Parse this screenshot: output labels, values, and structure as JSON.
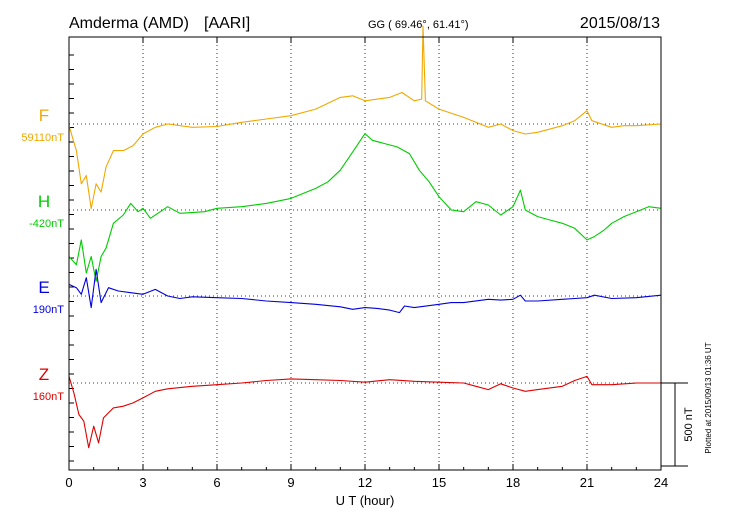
{
  "header": {
    "station": "Amderma (AMD)",
    "institute": "[AARI]",
    "coords": "GG ( 69.46°,  61.41°)",
    "date": "2015/08/13"
  },
  "footer": {
    "plotted": "Plotted at 2015/09/13 01:36 UT"
  },
  "chart_data": {
    "type": "line",
    "xlabel": "U T (hour)",
    "xlim": [
      0,
      24
    ],
    "x_ticks": [
      0,
      3,
      6,
      9,
      12,
      15,
      18,
      21,
      24
    ],
    "x_tick_labels": [
      "0",
      "3",
      "6",
      "9",
      "12",
      "15",
      "18",
      "21",
      "24"
    ],
    "y_unit": "nT",
    "scale_bar": {
      "label": "500 nT",
      "value_nT": 500
    },
    "grid": true,
    "series": [
      {
        "name": "F",
        "baseline_label": "59110nT",
        "baseline_nT": 59110,
        "color": "#f0a800",
        "points": [
          [
            0,
            59100
          ],
          [
            0.3,
            58950
          ],
          [
            0.5,
            58750
          ],
          [
            0.7,
            58800
          ],
          [
            0.9,
            58600
          ],
          [
            1.1,
            58750
          ],
          [
            1.3,
            58700
          ],
          [
            1.5,
            58850
          ],
          [
            1.8,
            58950
          ],
          [
            2.2,
            58950
          ],
          [
            2.6,
            58980
          ],
          [
            3.0,
            59050
          ],
          [
            3.5,
            59090
          ],
          [
            4.0,
            59110
          ],
          [
            5.0,
            59090
          ],
          [
            6.0,
            59095
          ],
          [
            7.0,
            59120
          ],
          [
            8.0,
            59140
          ],
          [
            9.0,
            59160
          ],
          [
            10.0,
            59200
          ],
          [
            11.0,
            59270
          ],
          [
            11.5,
            59280
          ],
          [
            12.0,
            59250
          ],
          [
            13.0,
            59270
          ],
          [
            13.5,
            59300
          ],
          [
            14.0,
            59250
          ],
          [
            14.3,
            59260
          ],
          [
            14.35,
            59700
          ],
          [
            14.45,
            59250
          ],
          [
            15.0,
            59200
          ],
          [
            16.0,
            59150
          ],
          [
            17.0,
            59090
          ],
          [
            17.5,
            59110
          ],
          [
            18.0,
            59070
          ],
          [
            18.5,
            59050
          ],
          [
            19.0,
            59060
          ],
          [
            20.0,
            59100
          ],
          [
            20.5,
            59130
          ],
          [
            21.0,
            59190
          ],
          [
            21.2,
            59130
          ],
          [
            22.0,
            59090
          ],
          [
            22.5,
            59100
          ],
          [
            23.0,
            59100
          ],
          [
            24.0,
            59110
          ]
        ]
      },
      {
        "name": "H",
        "baseline_label": "-420nT",
        "baseline_nT": -420,
        "color": "#00cc00",
        "points": [
          [
            0,
            -700
          ],
          [
            0.3,
            -750
          ],
          [
            0.5,
            -600
          ],
          [
            0.7,
            -800
          ],
          [
            0.9,
            -700
          ],
          [
            1.1,
            -850
          ],
          [
            1.3,
            -700
          ],
          [
            1.5,
            -650
          ],
          [
            1.8,
            -500
          ],
          [
            2.2,
            -450
          ],
          [
            2.5,
            -380
          ],
          [
            2.8,
            -430
          ],
          [
            3.0,
            -410
          ],
          [
            3.3,
            -470
          ],
          [
            4.0,
            -400
          ],
          [
            4.5,
            -440
          ],
          [
            5.5,
            -430
          ],
          [
            6.0,
            -410
          ],
          [
            7.0,
            -400
          ],
          [
            8.0,
            -380
          ],
          [
            9.0,
            -350
          ],
          [
            9.5,
            -320
          ],
          [
            10.0,
            -290
          ],
          [
            10.5,
            -250
          ],
          [
            11.0,
            -180
          ],
          [
            11.5,
            -70
          ],
          [
            12.0,
            40
          ],
          [
            12.3,
            0
          ],
          [
            12.8,
            -20
          ],
          [
            13.3,
            -40
          ],
          [
            13.8,
            -80
          ],
          [
            14.2,
            -180
          ],
          [
            14.6,
            -250
          ],
          [
            15.0,
            -340
          ],
          [
            15.5,
            -420
          ],
          [
            16.0,
            -430
          ],
          [
            16.5,
            -370
          ],
          [
            17.0,
            -390
          ],
          [
            17.5,
            -450
          ],
          [
            18.0,
            -400
          ],
          [
            18.3,
            -300
          ],
          [
            18.5,
            -420
          ],
          [
            19.0,
            -460
          ],
          [
            19.5,
            -480
          ],
          [
            20.0,
            -500
          ],
          [
            20.5,
            -530
          ],
          [
            21.0,
            -600
          ],
          [
            21.3,
            -580
          ],
          [
            21.7,
            -540
          ],
          [
            22.0,
            -500
          ],
          [
            22.5,
            -460
          ],
          [
            23.0,
            -430
          ],
          [
            23.5,
            -400
          ],
          [
            24.0,
            -410
          ]
        ]
      },
      {
        "name": "E",
        "baseline_label": "190nT",
        "baseline_nT": 190,
        "color": "#0000dd",
        "points": [
          [
            0,
            260
          ],
          [
            0.3,
            240
          ],
          [
            0.5,
            200
          ],
          [
            0.7,
            300
          ],
          [
            0.9,
            120
          ],
          [
            1.1,
            350
          ],
          [
            1.3,
            150
          ],
          [
            1.6,
            240
          ],
          [
            2.0,
            220
          ],
          [
            2.5,
            210
          ],
          [
            3.0,
            200
          ],
          [
            3.5,
            230
          ],
          [
            4.0,
            190
          ],
          [
            4.5,
            175
          ],
          [
            5.0,
            185
          ],
          [
            6.0,
            180
          ],
          [
            7.0,
            175
          ],
          [
            8.0,
            160
          ],
          [
            9.0,
            150
          ],
          [
            10.0,
            140
          ],
          [
            11.0,
            125
          ],
          [
            11.5,
            110
          ],
          [
            12.0,
            120
          ],
          [
            12.5,
            115
          ],
          [
            13.0,
            105
          ],
          [
            13.4,
            90
          ],
          [
            13.6,
            130
          ],
          [
            14.0,
            120
          ],
          [
            15.0,
            140
          ],
          [
            15.5,
            150
          ],
          [
            16.0,
            150
          ],
          [
            17.0,
            170
          ],
          [
            17.5,
            165
          ],
          [
            18.0,
            170
          ],
          [
            18.3,
            195
          ],
          [
            18.5,
            160
          ],
          [
            19.0,
            160
          ],
          [
            20.0,
            170
          ],
          [
            20.5,
            175
          ],
          [
            21.0,
            180
          ],
          [
            21.3,
            195
          ],
          [
            22.0,
            175
          ],
          [
            23.0,
            180
          ],
          [
            24.0,
            195
          ]
        ]
      },
      {
        "name": "Z",
        "baseline_label": "160nT",
        "baseline_nT": 160,
        "color": "#dd0000",
        "points": [
          [
            0,
            200
          ],
          [
            0.2,
            100
          ],
          [
            0.4,
            -30
          ],
          [
            0.6,
            -70
          ],
          [
            0.8,
            -230
          ],
          [
            1.0,
            -100
          ],
          [
            1.2,
            -200
          ],
          [
            1.4,
            -50
          ],
          [
            1.8,
            10
          ],
          [
            2.2,
            20
          ],
          [
            2.6,
            40
          ],
          [
            3.0,
            70
          ],
          [
            3.5,
            110
          ],
          [
            4.0,
            125
          ],
          [
            5.0,
            140
          ],
          [
            6.0,
            150
          ],
          [
            7.0,
            160
          ],
          [
            8.0,
            175
          ],
          [
            9.0,
            185
          ],
          [
            10.0,
            180
          ],
          [
            11.0,
            175
          ],
          [
            12.0,
            165
          ],
          [
            13.0,
            180
          ],
          [
            14.0,
            170
          ],
          [
            15.0,
            165
          ],
          [
            16.0,
            160
          ],
          [
            16.5,
            140
          ],
          [
            17.0,
            120
          ],
          [
            17.5,
            155
          ],
          [
            18.0,
            130
          ],
          [
            18.5,
            110
          ],
          [
            19.0,
            120
          ],
          [
            20.0,
            140
          ],
          [
            20.5,
            175
          ],
          [
            21.0,
            200
          ],
          [
            21.2,
            150
          ],
          [
            22.0,
            150
          ],
          [
            23.0,
            160
          ],
          [
            24.0,
            160
          ]
        ]
      }
    ]
  }
}
